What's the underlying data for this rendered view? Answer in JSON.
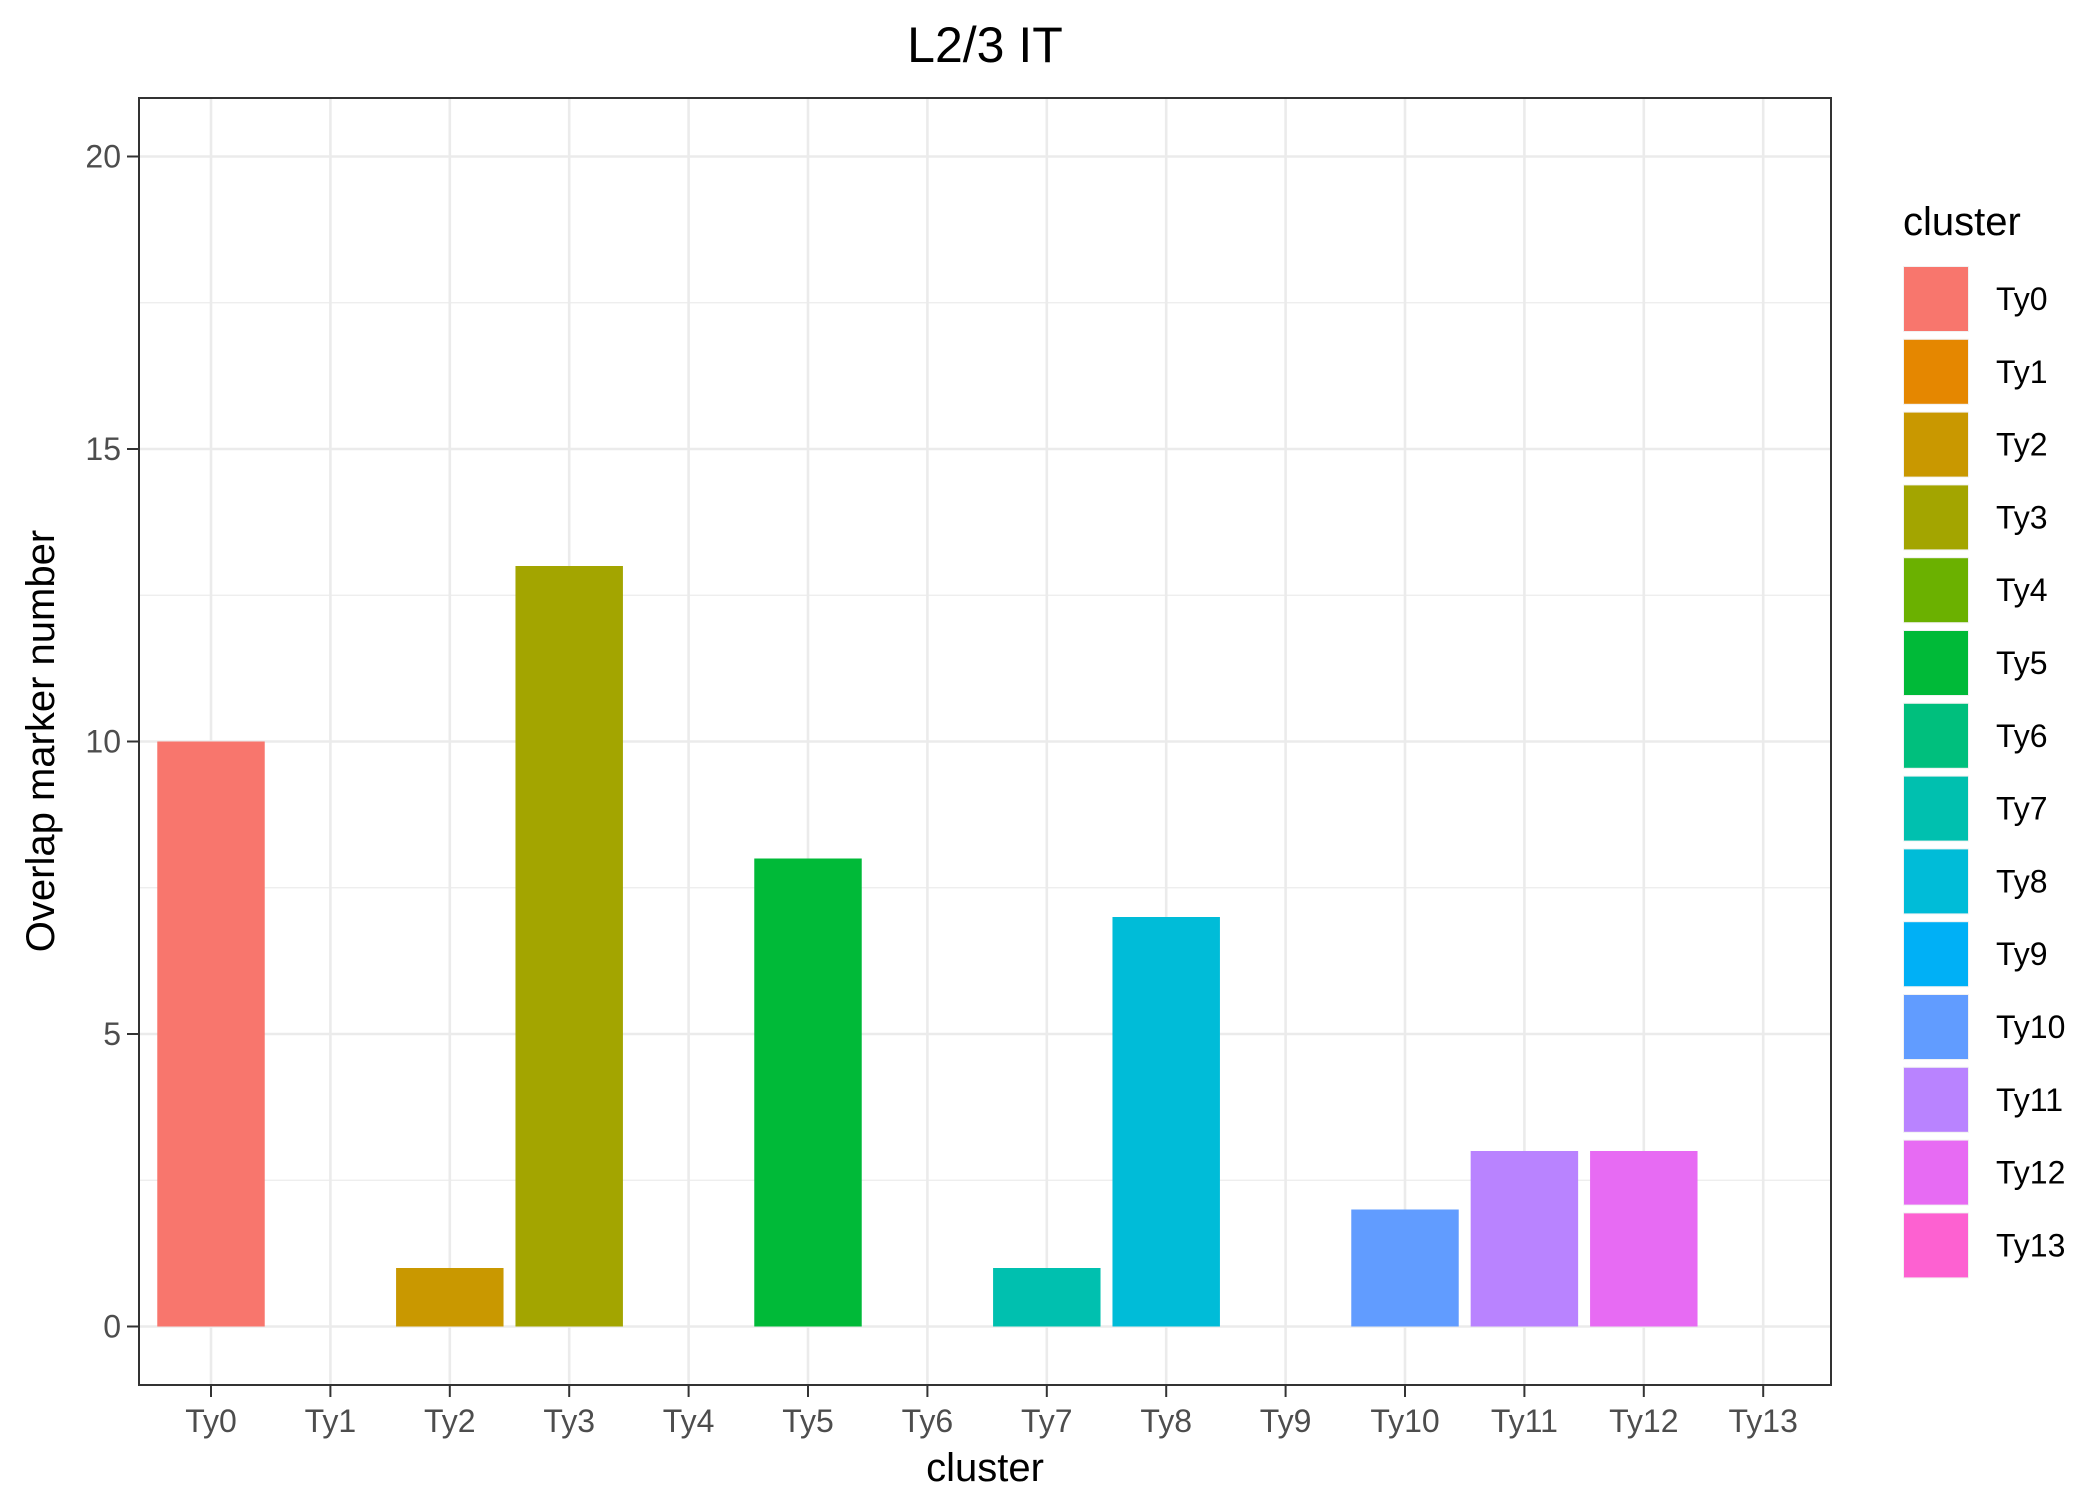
{
  "chart_data": {
    "type": "bar",
    "title": "L2/3 IT",
    "xlabel": "cluster",
    "ylabel": "Overlap marker number",
    "categories": [
      "Ty0",
      "Ty1",
      "Ty2",
      "Ty3",
      "Ty4",
      "Ty5",
      "Ty6",
      "Ty7",
      "Ty8",
      "Ty9",
      "Ty10",
      "Ty11",
      "Ty12",
      "Ty13"
    ],
    "values": [
      10,
      0,
      1,
      13,
      0,
      8,
      0,
      1,
      7,
      0,
      2,
      3,
      3,
      0
    ],
    "colors": [
      "#F8766D",
      "#E58700",
      "#C99800",
      "#A3A500",
      "#6BB100",
      "#00BA38",
      "#00BF7D",
      "#00C0AF",
      "#00BCD8",
      "#00B0F6",
      "#619CFF",
      "#B983FF",
      "#E76BF3",
      "#FD61D1"
    ],
    "ylim": [
      -1,
      21
    ],
    "yticks": [
      0,
      5,
      10,
      15,
      20
    ],
    "grid": true,
    "legend": {
      "title": "cluster",
      "position": "right",
      "entries": [
        "Ty0",
        "Ty1",
        "Ty2",
        "Ty3",
        "Ty4",
        "Ty5",
        "Ty6",
        "Ty7",
        "Ty8",
        "Ty9",
        "Ty10",
        "Ty11",
        "Ty12",
        "Ty13"
      ]
    }
  }
}
